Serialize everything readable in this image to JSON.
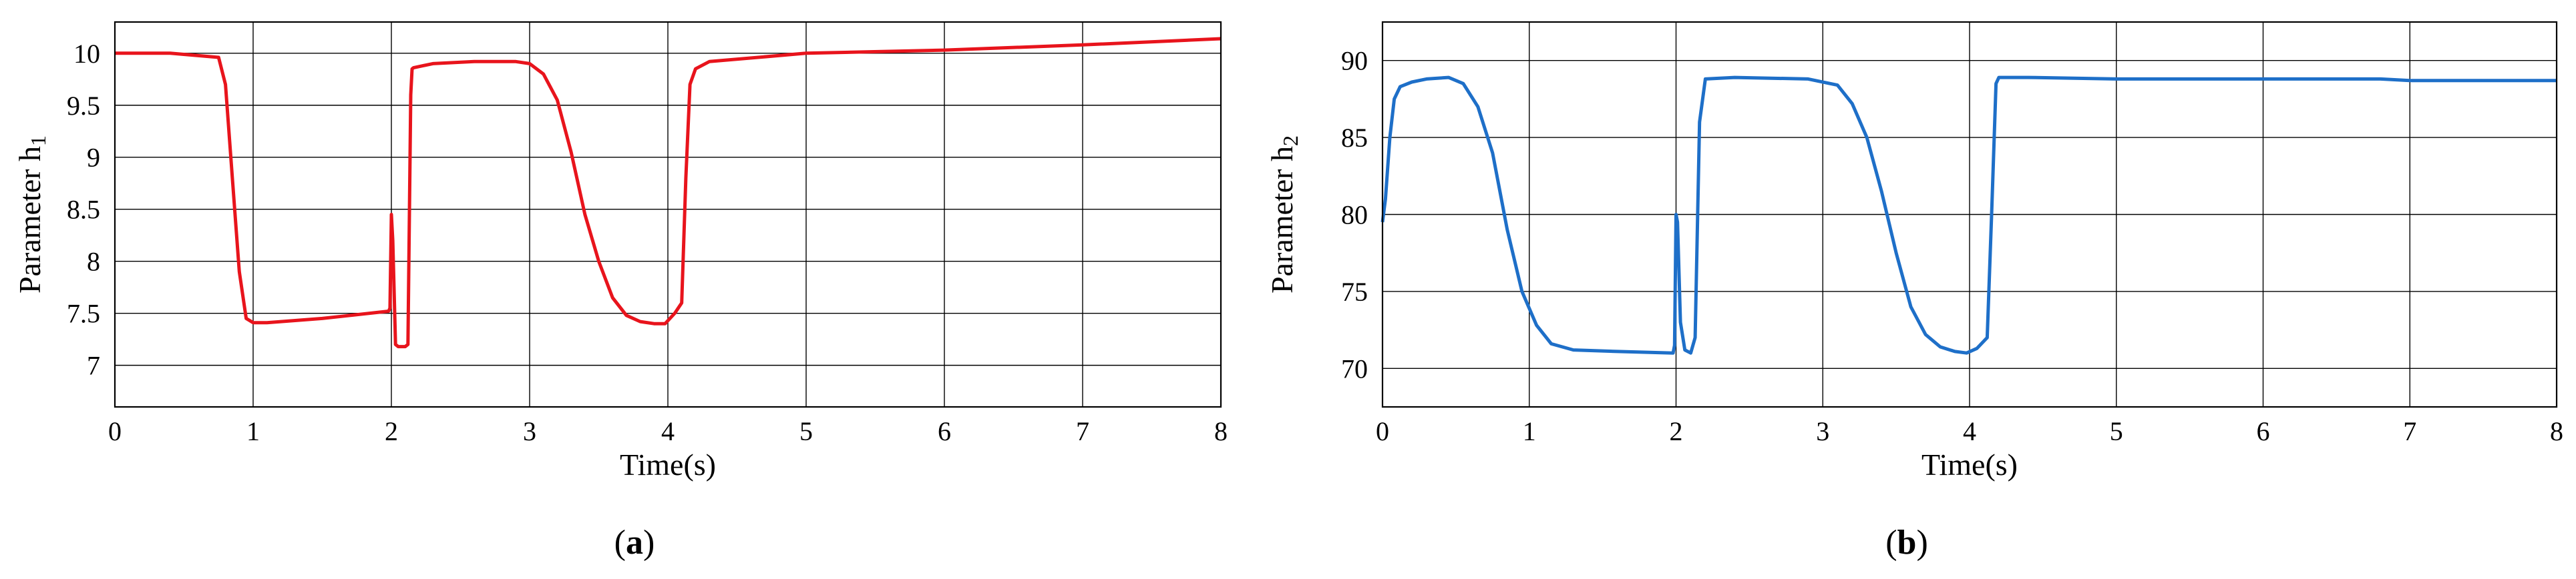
{
  "chart_data": [
    {
      "type": "line",
      "panel_label": "a",
      "xlabel": "Time(s)",
      "ylabel": "Parameter h1",
      "ylabel_main": "Parameter h",
      "ylabel_sub": "1",
      "xlim": [
        0,
        8
      ],
      "ylim": [
        6.6,
        10.3
      ],
      "xticks": [
        0,
        1,
        2,
        3,
        4,
        5,
        6,
        7,
        8
      ],
      "yticks": [
        7,
        7.5,
        8,
        8.5,
        9,
        9.5,
        10
      ],
      "xtick_labels": [
        "0",
        "1",
        "2",
        "3",
        "4",
        "5",
        "6",
        "7",
        "8"
      ],
      "ytick_labels": [
        "7",
        "7.5",
        "8",
        "8.5",
        "9",
        "9.5",
        "10"
      ],
      "grid": true,
      "series": [
        {
          "color": "#e8141c",
          "x": [
            0,
            0.4,
            0.75,
            0.8,
            0.85,
            0.9,
            0.95,
            1.0,
            1.1,
            1.5,
            1.98,
            1.99,
            2.0,
            2.01,
            2.03,
            2.05,
            2.08,
            2.1,
            2.12,
            2.14,
            2.15,
            2.16,
            2.3,
            2.6,
            2.9,
            3.0,
            3.1,
            3.2,
            3.3,
            3.4,
            3.5,
            3.6,
            3.7,
            3.8,
            3.9,
            3.98,
            4.05,
            4.1,
            4.13,
            4.16,
            4.2,
            4.3,
            5,
            6,
            7,
            8
          ],
          "y": [
            10.0,
            10.0,
            9.96,
            9.7,
            8.8,
            7.9,
            7.45,
            7.41,
            7.41,
            7.45,
            7.52,
            7.55,
            8.45,
            8.2,
            7.2,
            7.18,
            7.18,
            7.18,
            7.2,
            9.6,
            9.85,
            9.86,
            9.9,
            9.92,
            9.92,
            9.9,
            9.8,
            9.55,
            9.05,
            8.45,
            8.0,
            7.65,
            7.48,
            7.42,
            7.4,
            7.4,
            7.5,
            7.6,
            8.8,
            9.7,
            9.85,
            9.92,
            10.0,
            10.03,
            10.08,
            10.14
          ]
        }
      ]
    },
    {
      "type": "line",
      "panel_label": "b",
      "xlabel": "Time(s)",
      "ylabel": "Parameter h2",
      "ylabel_main": "Parameter h",
      "ylabel_sub": "2",
      "xlim": [
        0,
        8
      ],
      "ylim": [
        67.5,
        92.5
      ],
      "xticks": [
        0,
        1,
        2,
        3,
        4,
        5,
        6,
        7,
        8
      ],
      "yticks": [
        70,
        75,
        80,
        85,
        90
      ],
      "xtick_labels": [
        "0",
        "1",
        "2",
        "3",
        "4",
        "5",
        "6",
        "7",
        "8"
      ],
      "ytick_labels": [
        "70",
        "75",
        "80",
        "85",
        "90"
      ],
      "grid": true,
      "series": [
        {
          "color": "#1e6fc8",
          "x": [
            0,
            0.02,
            0.05,
            0.08,
            0.12,
            0.2,
            0.3,
            0.45,
            0.55,
            0.65,
            0.75,
            0.85,
            0.95,
            1.05,
            1.15,
            1.3,
            1.6,
            1.98,
            1.99,
            2.0,
            2.01,
            2.03,
            2.06,
            2.1,
            2.13,
            2.16,
            2.2,
            2.4,
            2.9,
            3.1,
            3.2,
            3.3,
            3.4,
            3.5,
            3.6,
            3.7,
            3.8,
            3.9,
            3.98,
            4.05,
            4.12,
            4.15,
            4.18,
            4.2,
            4.4,
            5,
            6,
            6.8,
            7,
            8
          ],
          "y": [
            79.5,
            81,
            85,
            87.5,
            88.3,
            88.6,
            88.8,
            88.9,
            88.5,
            87.0,
            84.0,
            79.0,
            75.0,
            72.8,
            71.6,
            71.2,
            71.1,
            71.0,
            71.5,
            80.0,
            79.5,
            73.0,
            71.2,
            71.0,
            72.0,
            86.0,
            88.8,
            88.9,
            88.8,
            88.4,
            87.2,
            85.0,
            81.5,
            77.5,
            74.0,
            72.2,
            71.4,
            71.1,
            71.0,
            71.3,
            72.0,
            80.0,
            88.5,
            88.9,
            88.9,
            88.8,
            88.8,
            88.8,
            88.7,
            88.7
          ]
        }
      ]
    }
  ]
}
